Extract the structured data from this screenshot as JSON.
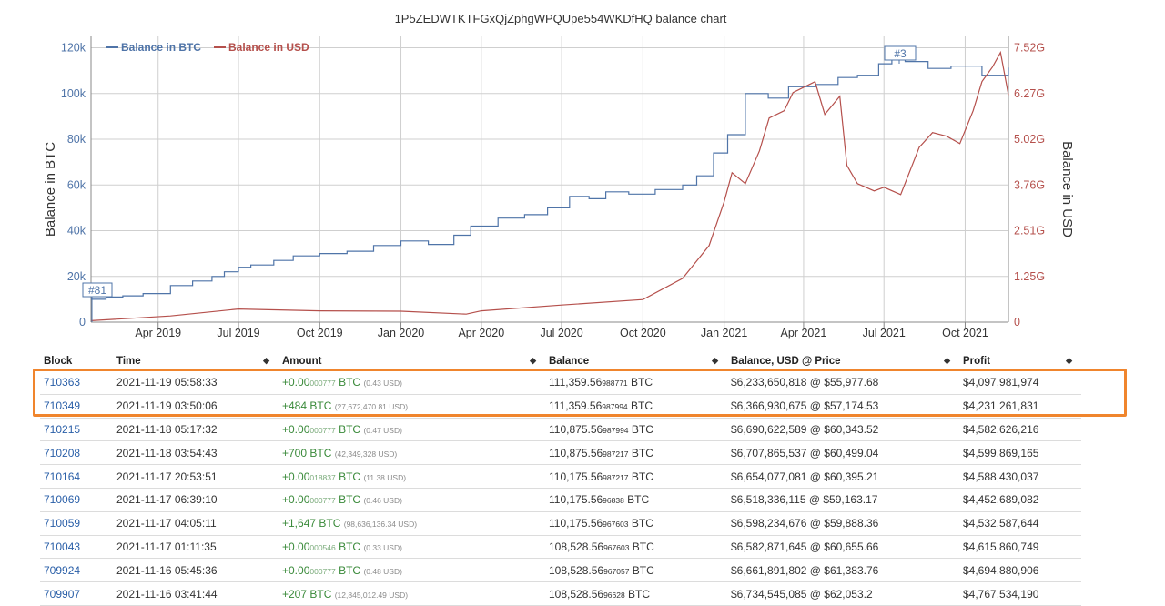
{
  "chart_data": {
    "type": "line",
    "title": "1P5ZEDWTKTFGxQjZphgWPQUpe554WKDfHQ balance chart",
    "xlabel": "",
    "ylabel": "Balance in BTC",
    "y2label": "Balance in USD",
    "x_ticks": [
      "Apr 2019",
      "Jul 2019",
      "Oct 2019",
      "Jan 2020",
      "Apr 2020",
      "Jul 2020",
      "Oct 2020",
      "Jan 2021",
      "Apr 2021",
      "Jul 2021",
      "Oct 2021"
    ],
    "y_ticks": [
      "0",
      "20k",
      "40k",
      "60k",
      "80k",
      "100k",
      "120k"
    ],
    "y2_ticks": [
      "0",
      "1.25G",
      "2.51G",
      "3.76G",
      "5.02G",
      "6.27G",
      "7.52G"
    ],
    "ylim": [
      0,
      125000
    ],
    "y2lim": [
      0,
      7840000000
    ],
    "xlim": [
      "2019-01-15",
      "2021-11-19"
    ],
    "annotations": [
      "#81",
      "#3"
    ],
    "legend_position": "top-left",
    "series": [
      {
        "name": "Balance in BTC",
        "color": "#4f74a8",
        "x": [
          "2019-01-15",
          "2019-02-01",
          "2019-02-20",
          "2019-03-15",
          "2019-04-15",
          "2019-05-10",
          "2019-06-01",
          "2019-06-15",
          "2019-07-01",
          "2019-07-15",
          "2019-08-10",
          "2019-09-01",
          "2019-10-01",
          "2019-11-01",
          "2019-12-01",
          "2020-01-01",
          "2020-02-01",
          "2020-03-01",
          "2020-03-20",
          "2020-04-20",
          "2020-05-20",
          "2020-06-15",
          "2020-07-10",
          "2020-08-01",
          "2020-08-20",
          "2020-09-15",
          "2020-10-15",
          "2020-11-15",
          "2020-12-01",
          "2020-12-20",
          "2021-01-05",
          "2021-01-25",
          "2021-02-20",
          "2021-03-15",
          "2021-04-15",
          "2021-05-10",
          "2021-06-01",
          "2021-06-25",
          "2021-07-10",
          "2021-07-25",
          "2021-08-20",
          "2021-09-15",
          "2021-10-20",
          "2021-11-19"
        ],
        "values": [
          10000,
          11000,
          11500,
          12500,
          16000,
          18000,
          20000,
          22000,
          24000,
          25000,
          27000,
          29000,
          30000,
          31000,
          33500,
          35500,
          34000,
          38000,
          42000,
          45500,
          47000,
          50000,
          55000,
          54000,
          57000,
          56000,
          58000,
          60000,
          64000,
          74000,
          82000,
          100000,
          98000,
          103000,
          104000,
          107000,
          108000,
          113000,
          117000,
          114000,
          111000,
          112000,
          108000,
          111360
        ]
      },
      {
        "name": "Balance in USD",
        "color": "#b5504c",
        "x": [
          "2019-01-15",
          "2019-04-15",
          "2019-07-01",
          "2019-10-01",
          "2020-01-01",
          "2020-03-15",
          "2020-04-01",
          "2020-07-01",
          "2020-10-01",
          "2020-11-15",
          "2020-12-15",
          "2021-01-01",
          "2021-01-10",
          "2021-01-25",
          "2021-02-10",
          "2021-02-21",
          "2021-03-10",
          "2021-03-20",
          "2021-04-14",
          "2021-04-25",
          "2021-05-12",
          "2021-05-20",
          "2021-06-01",
          "2021-06-20",
          "2021-07-01",
          "2021-07-20",
          "2021-08-10",
          "2021-08-25",
          "2021-09-10",
          "2021-09-25",
          "2021-10-10",
          "2021-10-20",
          "2021-11-01",
          "2021-11-10",
          "2021-11-19"
        ],
        "values": [
          40000000,
          170000000,
          360000000,
          310000000,
          300000000,
          220000000,
          310000000,
          470000000,
          620000000,
          1200000000,
          2100000000,
          3300000000,
          4100000000,
          3800000000,
          4700000000,
          5600000000,
          5800000000,
          6300000000,
          6600000000,
          5700000000,
          6200000000,
          4300000000,
          3800000000,
          3600000000,
          3700000000,
          3500000000,
          4800000000,
          5200000000,
          5100000000,
          4900000000,
          5800000000,
          6600000000,
          7000000000,
          7400000000,
          6233650818
        ]
      }
    ]
  },
  "table": {
    "headers": [
      "Block",
      "Time",
      "Amount",
      "Balance",
      "Balance, USD @ Price",
      "Profit"
    ],
    "rows": [
      {
        "block": "710363",
        "time": "2021-11-19 05:58:33",
        "amt_main": "+0.00",
        "amt_frac": "000777",
        "amt_unit": " BTC",
        "amt_usd": "(0.43 USD)",
        "bal_main": "111,359.56",
        "bal_frac": "988771",
        "bal_unit": " BTC",
        "usd_price": "$6,233,650,818 @ $55,977.68",
        "profit": "$4,097,981,974"
      },
      {
        "block": "710349",
        "time": "2021-11-19 03:50:06",
        "amt_main": "+484",
        "amt_frac": "",
        "amt_unit": " BTC",
        "amt_usd": "(27,672,470.81 USD)",
        "bal_main": "111,359.56",
        "bal_frac": "987994",
        "bal_unit": " BTC",
        "usd_price": "$6,366,930,675 @ $57,174.53",
        "profit": "$4,231,261,831"
      },
      {
        "block": "710215",
        "time": "2021-11-18 05:17:32",
        "amt_main": "+0.00",
        "amt_frac": "000777",
        "amt_unit": " BTC",
        "amt_usd": "(0.47 USD)",
        "bal_main": "110,875.56",
        "bal_frac": "987994",
        "bal_unit": " BTC",
        "usd_price": "$6,690,622,589 @ $60,343.52",
        "profit": "$4,582,626,216"
      },
      {
        "block": "710208",
        "time": "2021-11-18 03:54:43",
        "amt_main": "+700",
        "amt_frac": "",
        "amt_unit": " BTC",
        "amt_usd": "(42,349,328 USD)",
        "bal_main": "110,875.56",
        "bal_frac": "987217",
        "bal_unit": " BTC",
        "usd_price": "$6,707,865,537 @ $60,499.04",
        "profit": "$4,599,869,165"
      },
      {
        "block": "710164",
        "time": "2021-11-17 20:53:51",
        "amt_main": "+0.00",
        "amt_frac": "018837",
        "amt_unit": " BTC",
        "amt_usd": "(11.38 USD)",
        "bal_main": "110,175.56",
        "bal_frac": "987217",
        "bal_unit": " BTC",
        "usd_price": "$6,654,077,081 @ $60,395.21",
        "profit": "$4,588,430,037"
      },
      {
        "block": "710069",
        "time": "2021-11-17 06:39:10",
        "amt_main": "+0.00",
        "amt_frac": "000777",
        "amt_unit": " BTC",
        "amt_usd": "(0.46 USD)",
        "bal_main": "110,175.56",
        "bal_frac": "96838",
        "bal_unit": " BTC",
        "usd_price": "$6,518,336,115 @ $59,163.17",
        "profit": "$4,452,689,082"
      },
      {
        "block": "710059",
        "time": "2021-11-17 04:05:11",
        "amt_main": "+1,647",
        "amt_frac": "",
        "amt_unit": " BTC",
        "amt_usd": "(98,636,136.34 USD)",
        "bal_main": "110,175.56",
        "bal_frac": "967603",
        "bal_unit": " BTC",
        "usd_price": "$6,598,234,676 @ $59,888.36",
        "profit": "$4,532,587,644"
      },
      {
        "block": "710043",
        "time": "2021-11-17 01:11:35",
        "amt_main": "+0.00",
        "amt_frac": "000546",
        "amt_unit": " BTC",
        "amt_usd": "(0.33 USD)",
        "bal_main": "108,528.56",
        "bal_frac": "967603",
        "bal_unit": " BTC",
        "usd_price": "$6,582,871,645 @ $60,655.66",
        "profit": "$4,615,860,749"
      },
      {
        "block": "709924",
        "time": "2021-11-16 05:45:36",
        "amt_main": "+0.00",
        "amt_frac": "000777",
        "amt_unit": " BTC",
        "amt_usd": "(0.48 USD)",
        "bal_main": "108,528.56",
        "bal_frac": "967057",
        "bal_unit": " BTC",
        "usd_price": "$6,661,891,802 @ $61,383.76",
        "profit": "$4,694,880,906"
      },
      {
        "block": "709907",
        "time": "2021-11-16 03:41:44",
        "amt_main": "+207",
        "amt_frac": "",
        "amt_unit": " BTC",
        "amt_usd": "(12,845,012.49 USD)",
        "bal_main": "108,528.56",
        "bal_frac": "96628",
        "bal_unit": " BTC",
        "usd_price": "$6,734,545,085 @ $62,053.2",
        "profit": "$4,767,534,190"
      }
    ]
  },
  "colors": {
    "highlight": "#f0852d",
    "btc_line": "#4f74a8",
    "usd_line": "#b5504c",
    "link": "#2a5fa8",
    "amount": "#3a8a3a"
  },
  "sort_icon": "sort-updown-icon"
}
